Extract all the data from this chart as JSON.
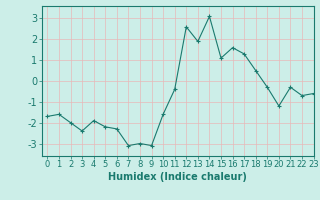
{
  "x": [
    0,
    1,
    2,
    3,
    4,
    5,
    6,
    7,
    8,
    9,
    10,
    11,
    12,
    13,
    14,
    15,
    16,
    17,
    18,
    19,
    20,
    21,
    22,
    23
  ],
  "y": [
    -1.7,
    -1.6,
    -2.0,
    -2.4,
    -1.9,
    -2.2,
    -2.3,
    -3.1,
    -3.0,
    -3.1,
    -1.6,
    -0.4,
    2.6,
    1.9,
    3.1,
    1.1,
    1.6,
    1.3,
    0.5,
    -0.3,
    -1.2,
    -0.3,
    -0.7,
    -0.6
  ],
  "line_color": "#1a7a6e",
  "marker": "+",
  "marker_color": "#1a7a6e",
  "bg_color": "#cceee8",
  "grid_color_major": "#e8b8b8",
  "xlabel": "Humidex (Indice chaleur)",
  "xlim": [
    -0.5,
    23
  ],
  "ylim": [
    -3.6,
    3.6
  ],
  "yticks": [
    -3,
    -2,
    -1,
    0,
    1,
    2,
    3
  ],
  "xticks": [
    0,
    1,
    2,
    3,
    4,
    5,
    6,
    7,
    8,
    9,
    10,
    11,
    12,
    13,
    14,
    15,
    16,
    17,
    18,
    19,
    20,
    21,
    22,
    23
  ],
  "tick_color": "#1a7a6e",
  "axis_color": "#1a7a6e",
  "label_color": "#1a7a6e",
  "tick_fontsize": 6,
  "xlabel_fontsize": 7
}
